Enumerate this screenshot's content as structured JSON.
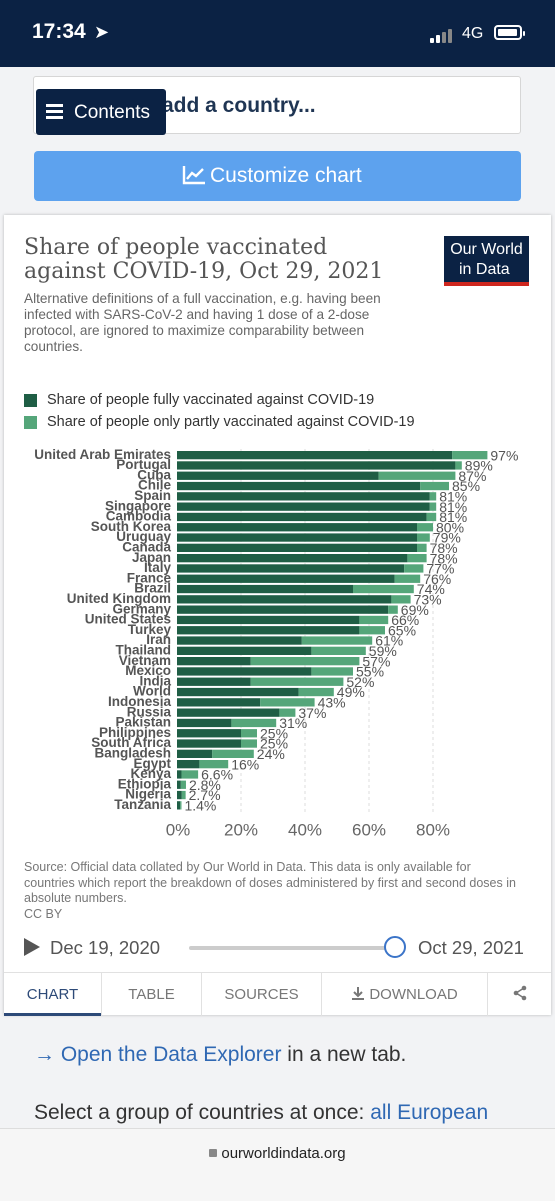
{
  "status": {
    "time": "17:34",
    "network": "4G"
  },
  "top": {
    "add_country": "add a country...",
    "contents_label": "Contents",
    "customize_label": "Customize chart"
  },
  "logo": {
    "line1": "Our World",
    "line2": "in Data"
  },
  "colors": {
    "full": "#1f5e45",
    "partial": "#55a67a",
    "nav": "#0b2244",
    "accent": "#5da2ee"
  },
  "chart_data": {
    "type": "bar",
    "orientation": "horizontal",
    "stacked": true,
    "title": "Share of people vaccinated against COVID-19, Oct 29, 2021",
    "subtitle": "Alternative definitions of a full vaccination, e.g. having been infected with SARS-CoV-2 and having 1 dose of a 2-dose protocol, are ignored to maximize comparability between countries.",
    "legend": [
      "Share of people fully vaccinated against COVID-19",
      "Share of people only partly vaccinated against COVID-19"
    ],
    "categories": [
      "United Arab Emirates",
      "Portugal",
      "Cuba",
      "Chile",
      "Spain",
      "Singapore",
      "Cambodia",
      "South Korea",
      "Uruguay",
      "Canada",
      "Japan",
      "Italy",
      "France",
      "Brazil",
      "United Kingdom",
      "Germany",
      "United States",
      "Turkey",
      "Iran",
      "Thailand",
      "Vietnam",
      "Mexico",
      "India",
      "World",
      "Indonesia",
      "Russia",
      "Pakistan",
      "Philippines",
      "South Africa",
      "Bangladesh",
      "Egypt",
      "Kenya",
      "Ethiopia",
      "Nigeria",
      "Tanzania"
    ],
    "series": [
      {
        "name": "Share of people fully vaccinated against COVID-19",
        "values": [
          86,
          87,
          63,
          76,
          79,
          79,
          78,
          75,
          75,
          75,
          72,
          71,
          68,
          55,
          67,
          66,
          57,
          57,
          39,
          42,
          23,
          42,
          23,
          38,
          26,
          32,
          17,
          20,
          20,
          11,
          7,
          1.4,
          1.2,
          1.5,
          1.0
        ]
      },
      {
        "name": "Share of people only partly vaccinated against COVID-19",
        "values": [
          11,
          2,
          24,
          9,
          2,
          2,
          3,
          5,
          4,
          3,
          6,
          6,
          8,
          19,
          6,
          3,
          9,
          8,
          22,
          17,
          34,
          13,
          29,
          11,
          17,
          5,
          14,
          5,
          5,
          13,
          9,
          5.2,
          1.6,
          1.2,
          0.4
        ]
      }
    ],
    "labels": [
      "97%",
      "89%",
      "87%",
      "85%",
      "81%",
      "81%",
      "81%",
      "80%",
      "79%",
      "78%",
      "78%",
      "77%",
      "76%",
      "74%",
      "73%",
      "69%",
      "66%",
      "65%",
      "61%",
      "59%",
      "57%",
      "55%",
      "52%",
      "49%",
      "43%",
      "37%",
      "31%",
      "25%",
      "25%",
      "24%",
      "16%",
      "6.6%",
      "2.8%",
      "2.7%",
      "1.4%"
    ],
    "xlim": [
      0,
      100
    ],
    "xticks": [
      "0%",
      "20%",
      "40%",
      "60%",
      "80%"
    ],
    "xtick_values": [
      0,
      20,
      40,
      60,
      80
    ],
    "grid": true
  },
  "source": "Source: Official data collated by Our World in Data. This data is only available for countries which report the breakdown of doses administered by first and second doses in absolute numbers.",
  "license": "CC BY",
  "timeline": {
    "start": "Dec 19, 2020",
    "end": "Oct 29, 2021",
    "position": 1.0
  },
  "tabs": {
    "chart": "CHART",
    "table": "TABLE",
    "sources": "SOURCES",
    "download": "DOWNLOAD"
  },
  "explore": {
    "arrow": "→ ",
    "link": "Open the Data Explorer",
    "rest": " in a new tab."
  },
  "select_group": {
    "text": "Select a group of countries at once: ",
    "link": "all European"
  },
  "url": "ourworldindata.org"
}
